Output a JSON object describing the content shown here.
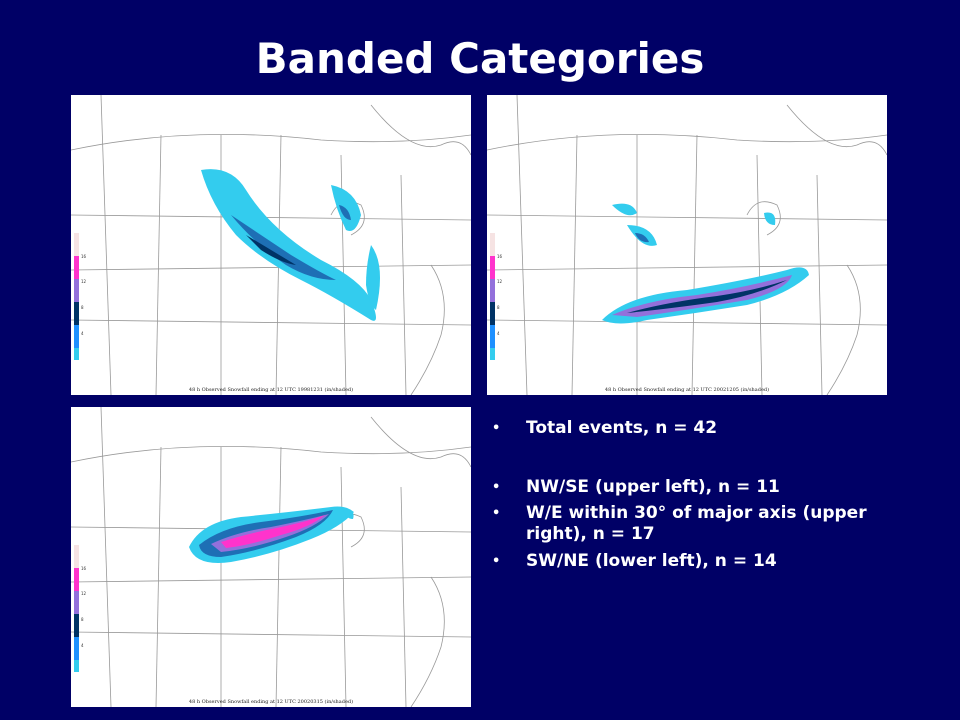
{
  "slide": {
    "title": "Banded Categories"
  },
  "maps": {
    "upper_left": {
      "caption": "48 h Observed Snowfall ending at 12 UTC 19981231 (in/shaded)"
    },
    "upper_right": {
      "caption": "48 h Observed Snowfall ending at 12 UTC 20021205 (in/shaded)"
    },
    "lower_left": {
      "caption": "48 h Observed Snowfall ending at 12 UTC 20020315 (in/shaded)"
    },
    "scale": {
      "labels": [
        "16",
        "12",
        "8",
        "4"
      ],
      "colors": [
        "#f6e3e3",
        "#ff33cc",
        "#9370db",
        "#003366",
        "#1e90ff",
        "#33ccee"
      ]
    }
  },
  "bullets": {
    "total": "Total events, n = 42",
    "nw_se": "NW/SE (upper left), n = 11",
    "w_e": "W/E within 30° of major axis (upper right), n = 17",
    "sw_ne": "SW/NE (lower left), n = 14",
    "marker": "•"
  }
}
